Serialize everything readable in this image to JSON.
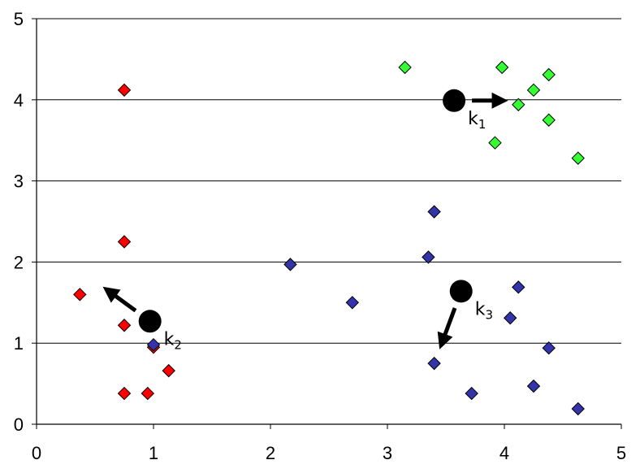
{
  "chart_data": {
    "type": "scatter",
    "title": "",
    "xlabel": "",
    "ylabel": "",
    "xlim": [
      0,
      5
    ],
    "ylim": [
      0,
      5
    ],
    "x_ticks": [
      "0",
      "1",
      "2",
      "3",
      "4",
      "5"
    ],
    "y_ticks": [
      "0",
      "1",
      "2",
      "3",
      "4",
      "5"
    ],
    "grid": "horizontal",
    "legend": "none",
    "series": [
      {
        "color": "#ff0000",
        "marker": "diamond",
        "points": [
          [
            0.75,
            4.12
          ],
          [
            0.75,
            2.25
          ],
          [
            0.37,
            1.6
          ],
          [
            0.75,
            1.22
          ],
          [
            1.0,
            0.95
          ],
          [
            1.13,
            0.66
          ],
          [
            0.75,
            0.38
          ],
          [
            0.95,
            0.38
          ]
        ]
      },
      {
        "color": "#33ff33",
        "marker": "diamond",
        "points": [
          [
            3.15,
            4.4
          ],
          [
            3.98,
            4.4
          ],
          [
            4.38,
            4.31
          ],
          [
            4.25,
            4.12
          ],
          [
            4.12,
            3.94
          ],
          [
            4.38,
            3.75
          ],
          [
            3.92,
            3.47
          ],
          [
            4.63,
            3.28
          ]
        ]
      },
      {
        "color": "#3333aa",
        "marker": "diamond",
        "points": [
          [
            3.4,
            2.62
          ],
          [
            3.35,
            2.06
          ],
          [
            2.17,
            1.97
          ],
          [
            2.7,
            1.5
          ],
          [
            4.12,
            1.69
          ],
          [
            4.05,
            1.31
          ],
          [
            1.0,
            0.98
          ],
          [
            4.38,
            0.94
          ],
          [
            3.4,
            0.75
          ],
          [
            4.25,
            0.47
          ],
          [
            3.72,
            0.38
          ],
          [
            4.63,
            0.19
          ]
        ]
      }
    ],
    "centroids": [
      {
        "label": "k",
        "sub": "1",
        "x": 3.57,
        "y": 3.99,
        "arrow_to": [
          3.99,
          3.99
        ]
      },
      {
        "label": "k",
        "sub": "2",
        "x": 0.97,
        "y": 1.27,
        "arrow_to": [
          0.6,
          1.66
        ]
      },
      {
        "label": "k",
        "sub": "3",
        "x": 3.63,
        "y": 1.64,
        "arrow_to": [
          3.46,
          0.98
        ]
      }
    ]
  }
}
